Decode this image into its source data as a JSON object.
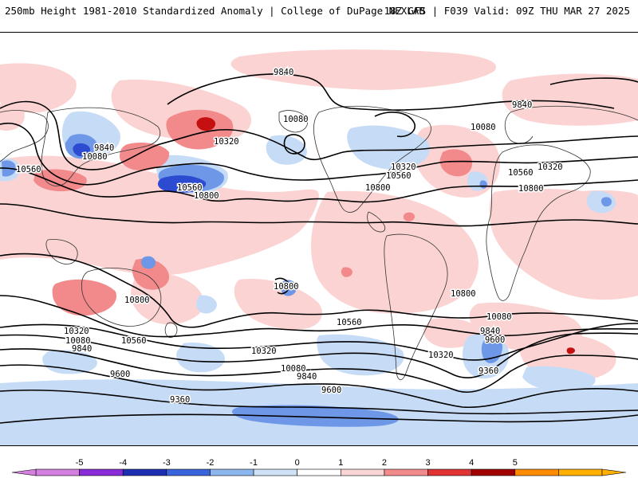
{
  "header": {
    "left": "250mb Height 1981-2010 Standardized Anomaly | College of DuPage NEXLAB",
    "right": "18Z GFS | F039 Valid: 09Z THU MAR 27 2025"
  },
  "contour_labels": [
    {
      "id": "c1",
      "text": "9840"
    },
    {
      "id": "c2",
      "text": "10080"
    },
    {
      "id": "c3",
      "text": "10320"
    },
    {
      "id": "c4",
      "text": "9840"
    },
    {
      "id": "c5",
      "text": "10080"
    },
    {
      "id": "c6",
      "text": "10560"
    },
    {
      "id": "c7",
      "text": "10560"
    },
    {
      "id": "c8",
      "text": "10800"
    },
    {
      "id": "c9",
      "text": "10320"
    },
    {
      "id": "c10",
      "text": "10560"
    },
    {
      "id": "c11",
      "text": "10800"
    },
    {
      "id": "c12",
      "text": "9840"
    },
    {
      "id": "c13",
      "text": "10080"
    },
    {
      "id": "c14",
      "text": "10320"
    },
    {
      "id": "c15",
      "text": "10560"
    },
    {
      "id": "c16",
      "text": "10800"
    },
    {
      "id": "c17",
      "text": "10800"
    },
    {
      "id": "c18",
      "text": "10800"
    },
    {
      "id": "c19",
      "text": "10800"
    },
    {
      "id": "c20",
      "text": "10320"
    },
    {
      "id": "c21",
      "text": "10080"
    },
    {
      "id": "c22",
      "text": "9840"
    },
    {
      "id": "c23",
      "text": "10560"
    },
    {
      "id": "c24",
      "text": "10320"
    },
    {
      "id": "c25",
      "text": "10080"
    },
    {
      "id": "c26",
      "text": "9840"
    },
    {
      "id": "c27",
      "text": "10560"
    },
    {
      "id": "c28",
      "text": "10320"
    },
    {
      "id": "c29",
      "text": "10080"
    },
    {
      "id": "c30",
      "text": "9840"
    },
    {
      "id": "c31",
      "text": "9600"
    },
    {
      "id": "c32",
      "text": "9600"
    },
    {
      "id": "c33",
      "text": "9600"
    },
    {
      "id": "c34",
      "text": "9360"
    },
    {
      "id": "c35",
      "text": "9360"
    }
  ],
  "colorbar": {
    "ticks": [
      "-5",
      "-4",
      "-3",
      "-2",
      "-1",
      "0",
      "1",
      "2",
      "3",
      "4",
      "5"
    ],
    "colors": [
      "#d580e0",
      "#8a2bd8",
      "#1f2fb4",
      "#3a64dc",
      "#8eb6ee",
      "#cfe2f8",
      "#ffffff",
      "#fbd6d6",
      "#f28c8c",
      "#e03434",
      "#a00000",
      "#ff8c00",
      "#ffb000"
    ]
  },
  "colors": {
    "pos_weak": "#fbd3d3",
    "pos_mod": "#f2898a",
    "pos_strong": "#c41010",
    "neg_weak": "#c6dcf6",
    "neg_mod": "#6e97e8",
    "neg_strong": "#2d4bd0",
    "coast": "#333333",
    "contour": "#000000"
  }
}
